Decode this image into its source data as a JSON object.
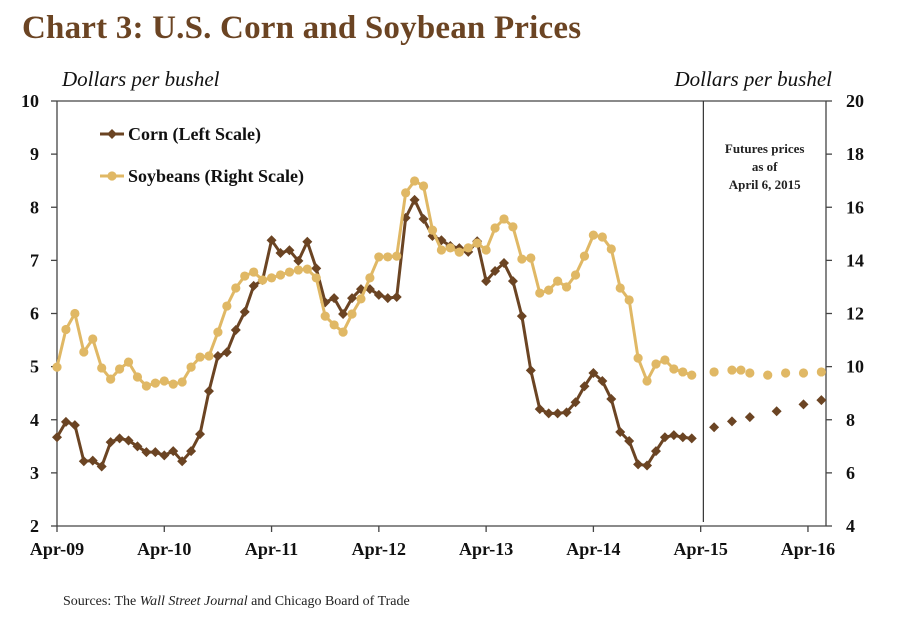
{
  "chart_data": {
    "type": "line",
    "title": "Chart 3: U.S. Corn and Soybean Prices",
    "ylabel_left": "Dollars per bushel",
    "ylabel_right": "Dollars per bushel",
    "xlabel": "",
    "ylim_left": [
      2,
      10
    ],
    "ylim_right": [
      4,
      20
    ],
    "yticks_left": [
      "2",
      "3",
      "4",
      "5",
      "6",
      "7",
      "8",
      "9",
      "10"
    ],
    "yticks_right": [
      "4",
      "6",
      "8",
      "10",
      "12",
      "14",
      "16",
      "18",
      "20"
    ],
    "x_tick_labels": [
      "Apr-09",
      "Apr-10",
      "Apr-11",
      "Apr-12",
      "Apr-13",
      "Apr-14",
      "Apr-15",
      "Apr-16"
    ],
    "x_range_months": [
      0,
      86
    ],
    "grid": false,
    "legend_placement": "top-left",
    "annotation": [
      "Futures prices",
      "as of",
      "April 6, 2015"
    ],
    "futures_divider_month": 72.3,
    "source": {
      "prefix": "Sources: The ",
      "italic": "Wall Street Journal",
      "suffix": " and Chicago Board of Trade"
    },
    "series": [
      {
        "name": "Corn  (Left Scale)",
        "axis": "left",
        "color": "#6b4423",
        "marker": "diamond",
        "start_month": 0,
        "values": [
          3.67,
          3.96,
          3.9,
          3.22,
          3.23,
          3.12,
          3.58,
          3.65,
          3.61,
          3.5,
          3.39,
          3.39,
          3.33,
          3.41,
          3.22,
          3.41,
          3.73,
          4.54,
          5.2,
          5.27,
          5.69,
          6.03,
          6.52,
          6.63,
          7.38,
          7.14,
          7.19,
          6.99,
          7.35,
          6.85,
          6.21,
          6.29,
          5.99,
          6.29,
          6.46,
          6.46,
          6.35,
          6.29,
          6.31,
          7.8,
          8.14,
          7.78,
          7.46,
          7.38,
          7.27,
          7.23,
          7.16,
          7.36,
          6.61,
          6.8,
          6.95,
          6.61,
          5.95,
          4.93,
          4.2,
          4.12,
          4.12,
          4.14,
          4.33,
          4.63,
          4.88,
          4.73,
          4.39,
          3.77,
          3.6,
          3.16,
          3.14,
          3.41,
          3.67,
          3.71,
          3.67,
          3.65
        ],
        "futures": {
          "labels": [
            "May-15",
            "Jul-15",
            "Sep-15",
            "Dec-15",
            "Mar-16",
            "May-16"
          ],
          "months": [
            73.5,
            75.5,
            77.5,
            80.5,
            83.5,
            85.5
          ],
          "values": [
            3.86,
            3.97,
            4.05,
            4.16,
            4.29,
            4.37
          ]
        }
      },
      {
        "name": "Soybeans (Right Scale)",
        "axis": "right",
        "color": "#e0b865",
        "marker": "circle",
        "start_month": 0,
        "values": [
          9.98,
          11.4,
          12.0,
          10.55,
          11.04,
          9.95,
          9.53,
          9.91,
          10.17,
          9.61,
          9.27,
          9.38,
          9.46,
          9.34,
          9.42,
          9.98,
          10.36,
          10.4,
          11.3,
          12.28,
          12.96,
          13.41,
          13.56,
          13.26,
          13.34,
          13.45,
          13.56,
          13.64,
          13.67,
          13.34,
          11.9,
          11.57,
          11.3,
          11.98,
          12.55,
          13.34,
          14.13,
          14.13,
          14.16,
          16.54,
          16.99,
          16.8,
          15.14,
          14.39,
          14.47,
          14.31,
          14.47,
          14.65,
          14.39,
          15.22,
          15.56,
          15.26,
          14.05,
          14.09,
          12.77,
          12.88,
          13.22,
          13.0,
          13.45,
          14.16,
          14.95,
          14.88,
          14.43,
          12.96,
          12.51,
          10.32,
          9.46,
          10.1,
          10.25,
          9.91,
          9.8,
          9.68
        ],
        "futures": {
          "labels": [
            "May-15",
            "Jul-15",
            "Aug-15",
            "Sep-15",
            "Nov-15",
            "Jan-16",
            "Mar-16",
            "May-16"
          ],
          "months": [
            73.5,
            75.5,
            76.5,
            77.5,
            79.5,
            81.5,
            83.5,
            85.5
          ],
          "values": [
            9.8,
            9.87,
            9.87,
            9.76,
            9.68,
            9.76,
            9.76,
            9.8
          ]
        }
      }
    ]
  }
}
